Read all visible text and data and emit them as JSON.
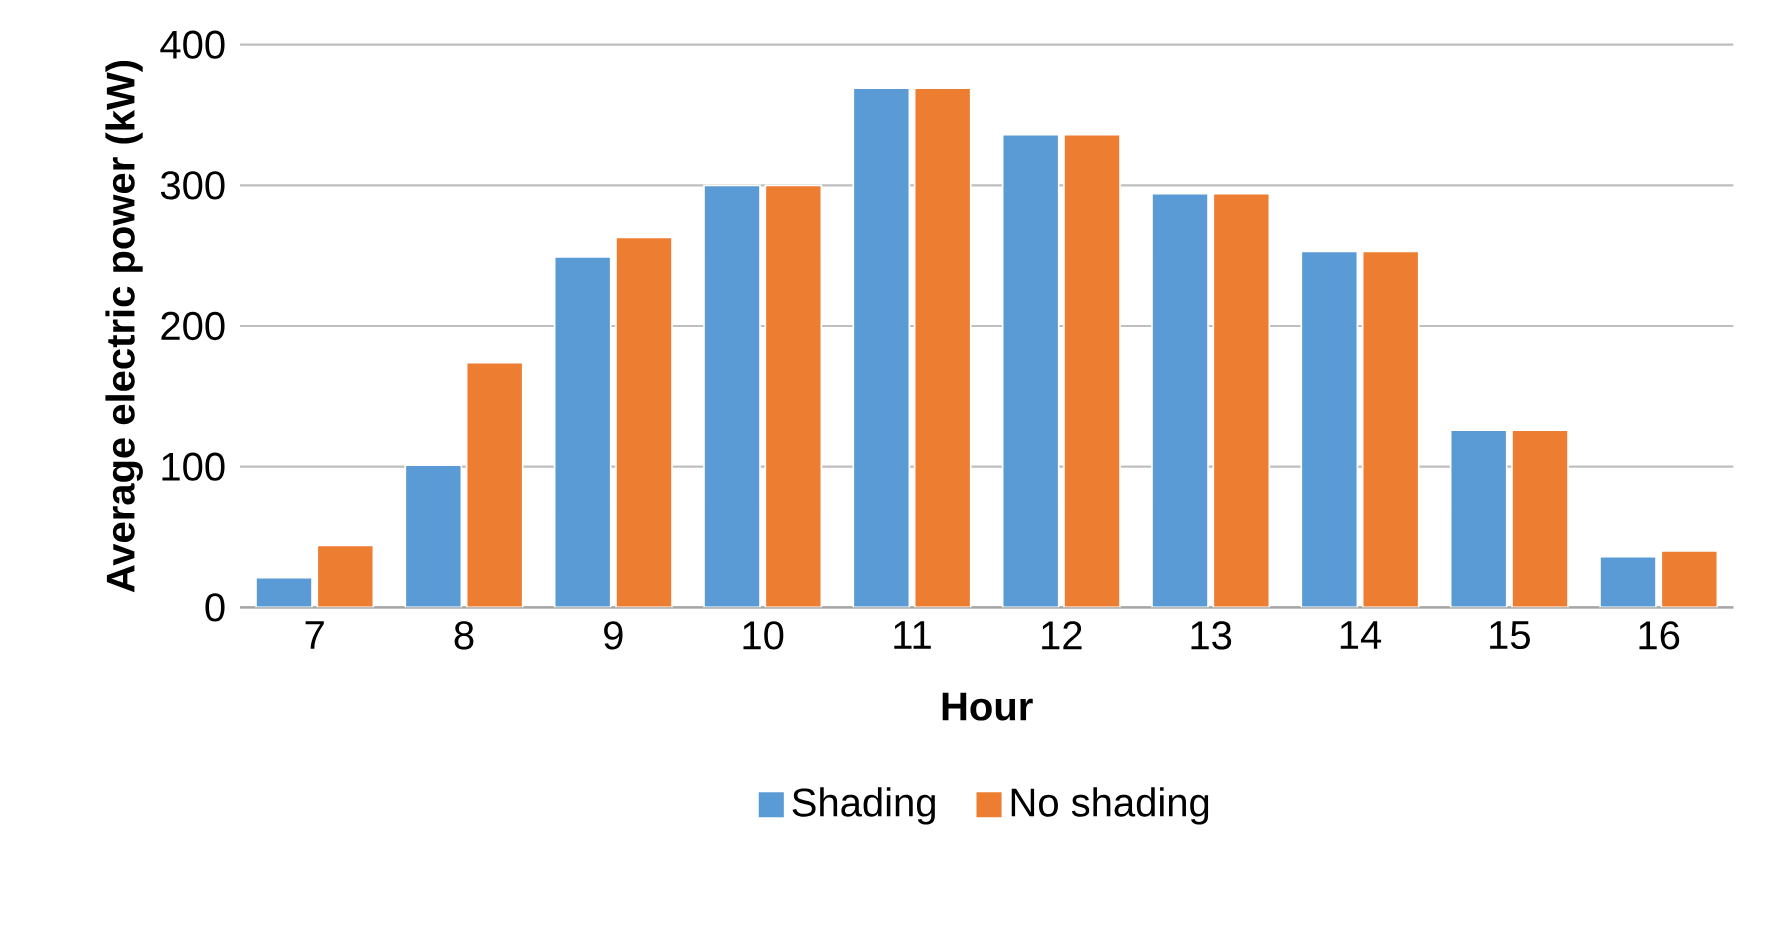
{
  "chart_data": {
    "type": "bar",
    "xlabel": "Hour",
    "ylabel": "Average electric power (kW)",
    "categories": [
      "7",
      "8",
      "9",
      "10",
      "11",
      "12",
      "13",
      "14",
      "15",
      "16"
    ],
    "series": [
      {
        "name": "Shading",
        "color": "#5b9bd5",
        "values": [
          21,
          101,
          249,
          300,
          369,
          336,
          294,
          253,
          126,
          36
        ]
      },
      {
        "name": "No shading",
        "color": "#ed7d31",
        "values": [
          44,
          174,
          263,
          300,
          369,
          336,
          294,
          253,
          126,
          40
        ]
      }
    ],
    "ylim": [
      0,
      400
    ],
    "yticks": [
      0,
      100,
      200,
      300,
      400
    ],
    "grid": "y",
    "legend": "bottom"
  }
}
